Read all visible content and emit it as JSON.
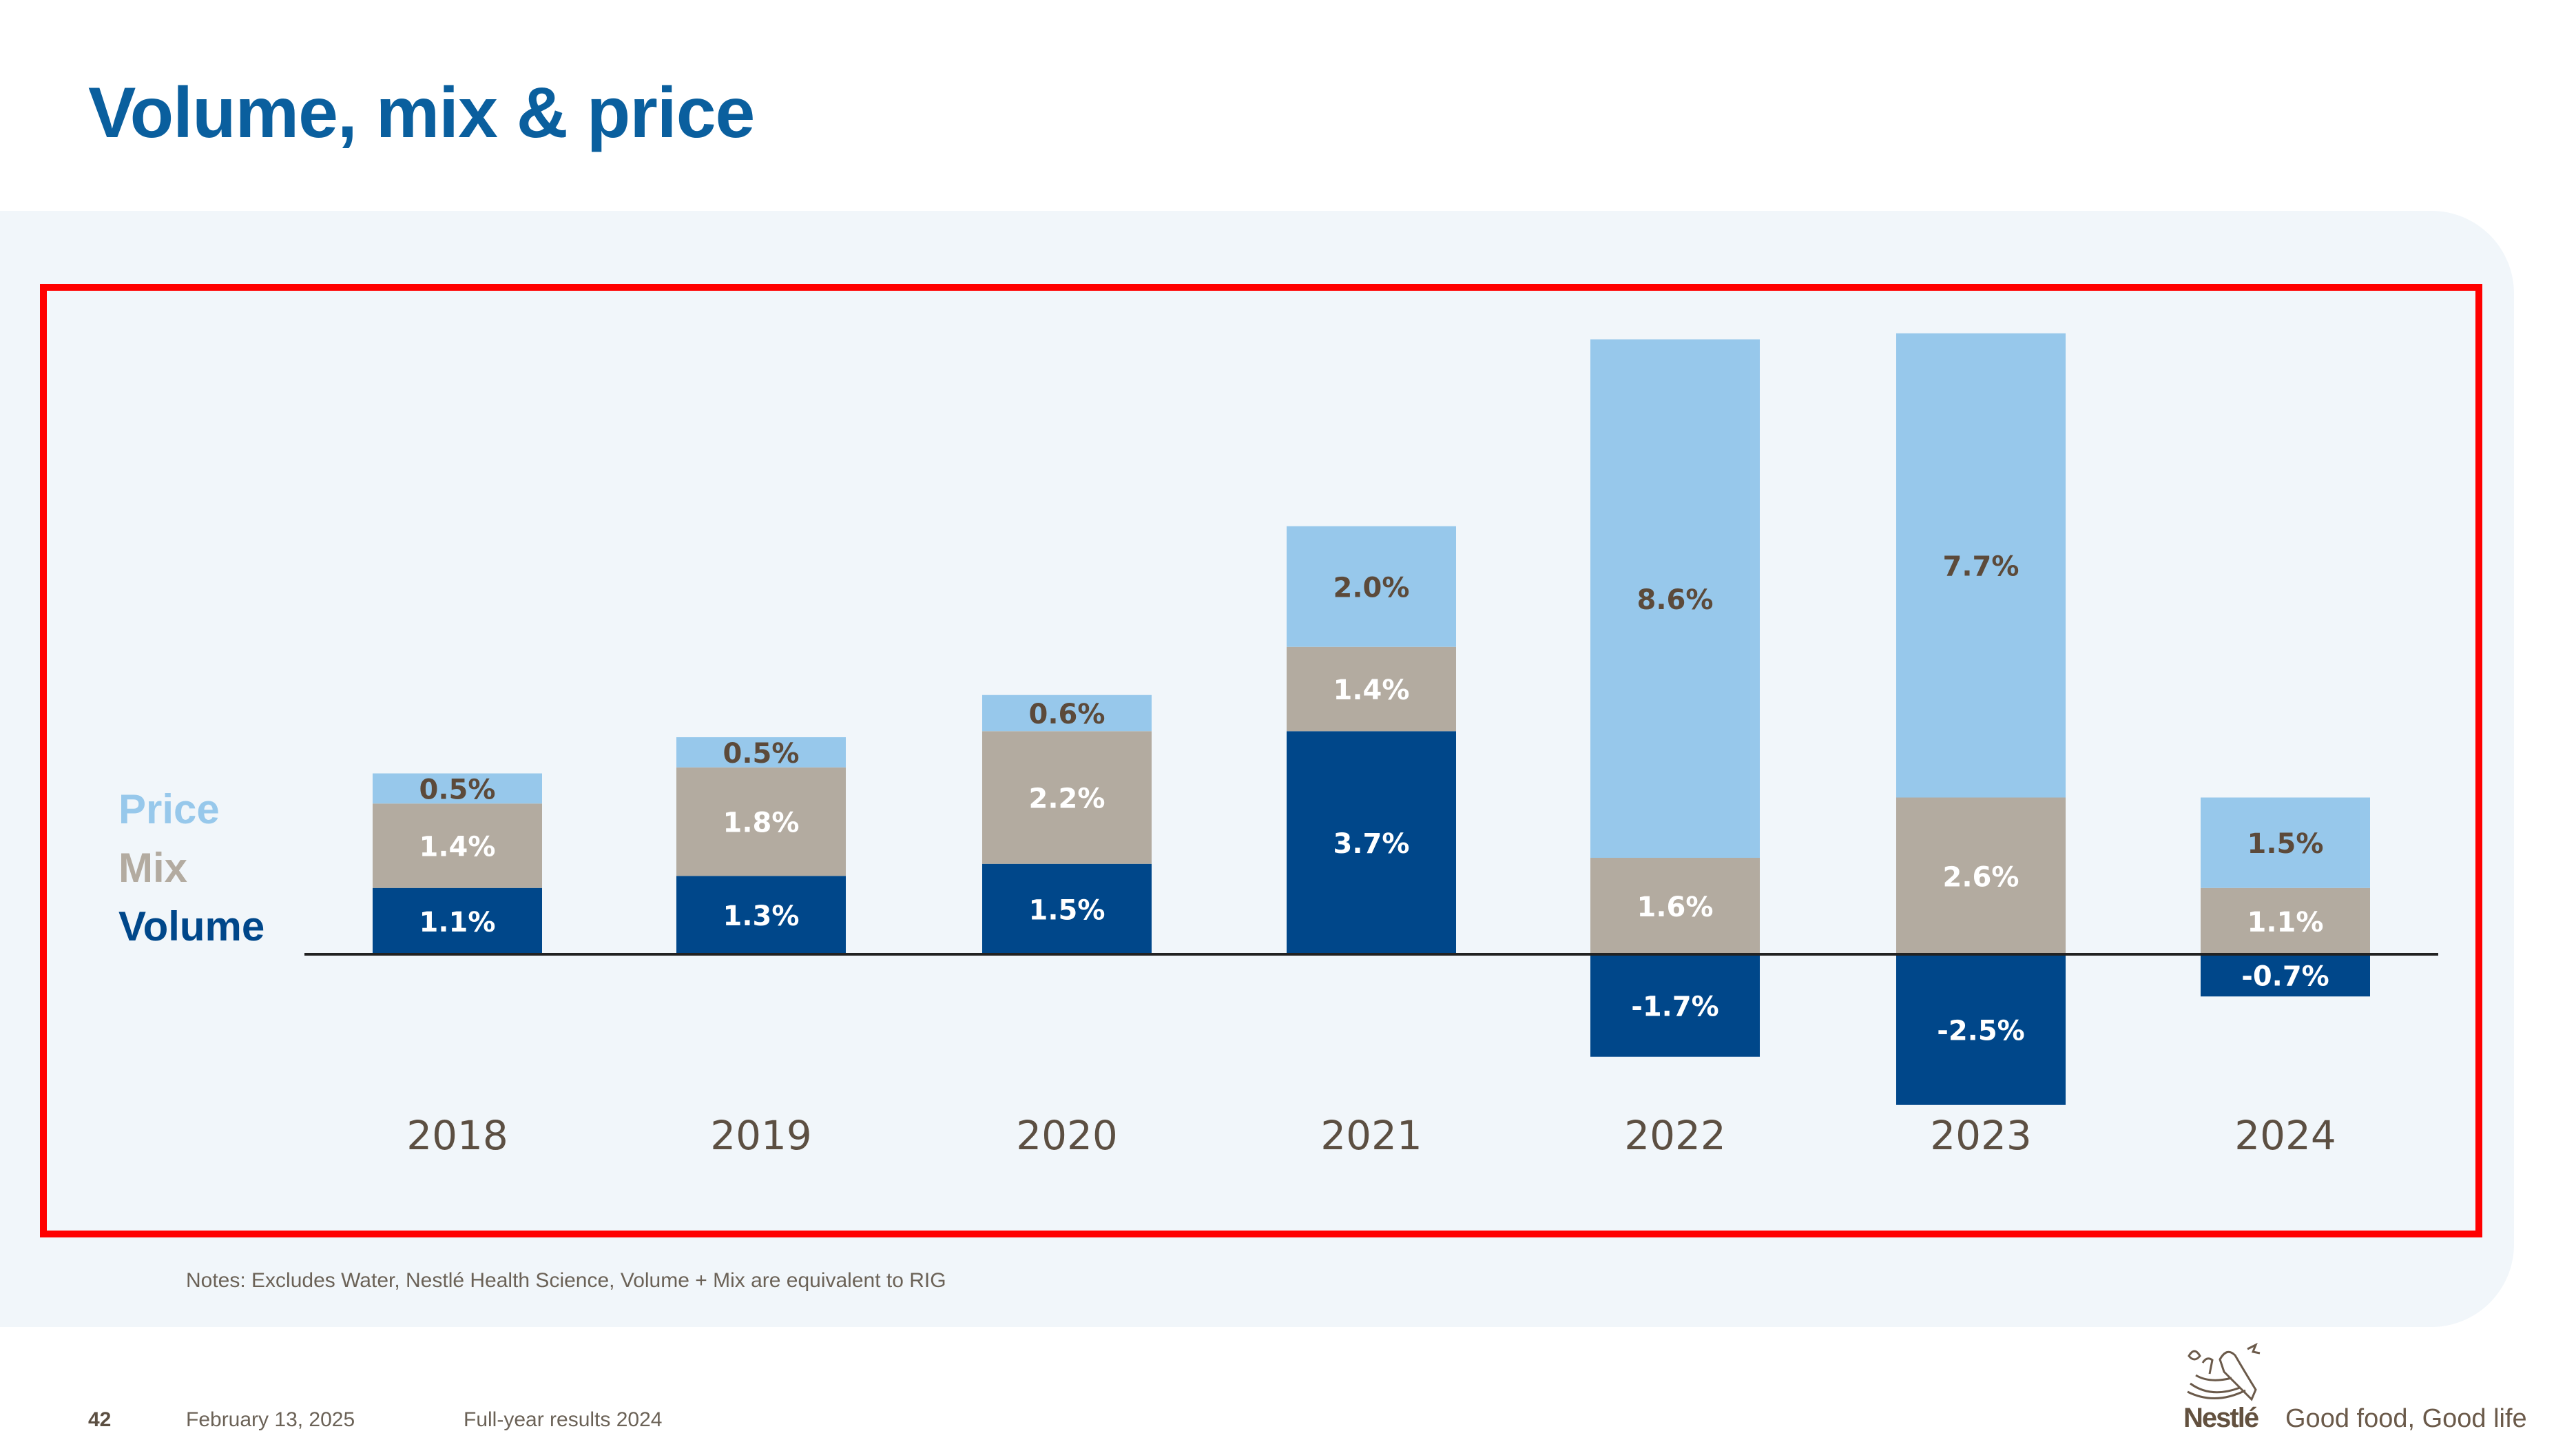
{
  "title": "Volume, mix & price",
  "legend": [
    {
      "key": "price",
      "label": "Price",
      "color": "#97c8eb"
    },
    {
      "key": "mix",
      "label": "Mix",
      "color": "#b3aba0"
    },
    {
      "key": "volume",
      "label": "Volume",
      "color": "#00478a"
    }
  ],
  "chart_data": {
    "type": "bar",
    "stacked": true,
    "title": "Volume, mix & price",
    "xlabel": "",
    "ylabel": "",
    "categories": [
      "2018",
      "2019",
      "2020",
      "2021",
      "2022",
      "2023",
      "2024"
    ],
    "series": [
      {
        "name": "Volume",
        "color": "#00478a",
        "values": [
          1.1,
          1.3,
          1.5,
          3.7,
          -1.7,
          -2.5,
          -0.7
        ],
        "labels": [
          "1.1%",
          "1.3%",
          "1.5%",
          "3.7%",
          "-1.7%",
          "-2.5%",
          "-0.7%"
        ]
      },
      {
        "name": "Mix",
        "color": "#b3aba0",
        "values": [
          1.4,
          1.8,
          2.2,
          1.4,
          1.6,
          2.6,
          1.1
        ],
        "labels": [
          "1.4%",
          "1.8%",
          "2.2%",
          "1.4%",
          "1.6%",
          "2.6%",
          "1.1%"
        ]
      },
      {
        "name": "Price",
        "color": "#97c8eb",
        "values": [
          0.5,
          0.5,
          0.6,
          2.0,
          8.6,
          7.7,
          1.5
        ],
        "labels": [
          "0.5%",
          "0.5%",
          "0.6%",
          "2.0%",
          "8.6%",
          "7.7%",
          "1.5%"
        ]
      }
    ],
    "ylim": [
      -2.5,
      10.3
    ],
    "grid": false,
    "legend_position": "left",
    "baseline": 0
  },
  "notes": "Notes: Excludes Water, Nestlé Health Science, Volume + Mix are equivalent to RIG",
  "footer": {
    "page": "42",
    "date": "February 13, 2025",
    "event": "Full-year results 2024",
    "brand": "Nestlé",
    "tagline": "Good food, Good life",
    "logo_icon": "nest-birds-icon"
  }
}
